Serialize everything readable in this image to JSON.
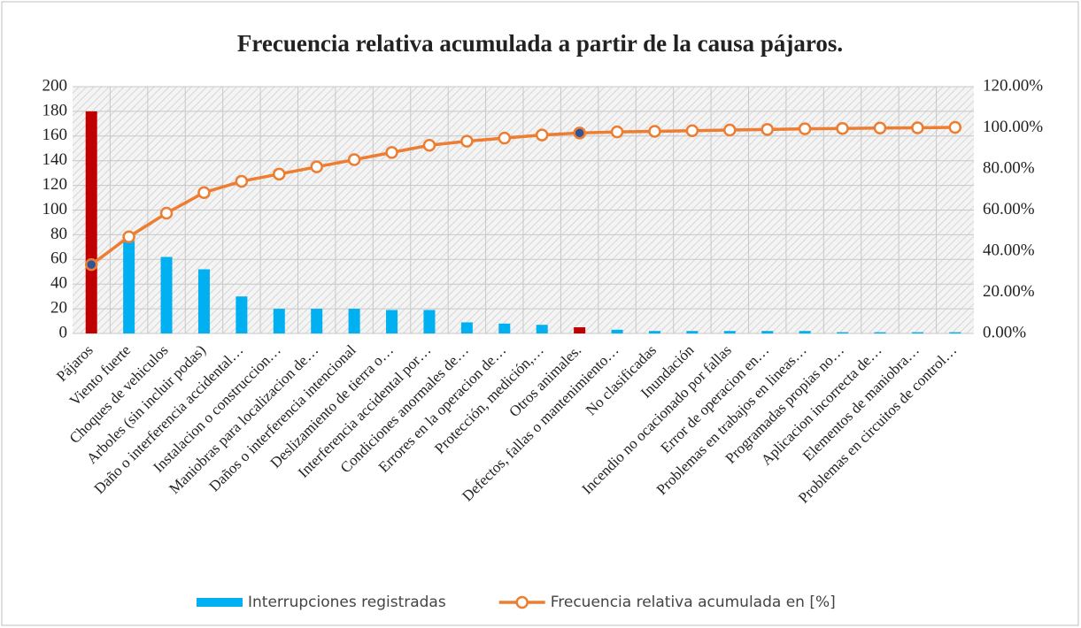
{
  "chart_data": {
    "type": "bar_line",
    "title": "Frecuencia relativa acumulada a partir de la causa pájaros.",
    "categories": [
      "Pájaros",
      "Viento fuerte",
      "Choques de vehiculos",
      "Arboles (sin incluir podas)",
      "Daño o interferencia accidental…",
      "Instalacion o construccion…",
      "Maniobras para localizacion de…",
      "Daños o interferencia intencional",
      "Deslizamiento de tierra o…",
      "Interferencia accidental por…",
      "Condiciones anormales de…",
      "Errores en la operacion de…",
      "Protección, medición,…",
      "Otros animales.",
      "Defectos, fallas o mantenimiento…",
      "No clasificadas",
      "Inundación",
      "Incendio no ocacionado por fallas",
      "Error de operacion en…",
      "Problemas en trabajos en lineas…",
      "Programadas propias no…",
      "Aplicacion incorrecta de…",
      "Elementos de maniobra…",
      "Problemas en circuitos de control…"
    ],
    "series": [
      {
        "name": "Interrupciones registradas",
        "type": "bar",
        "color": "#00b0f0",
        "colors": [
          "#c00000",
          "#00b0f0",
          "#00b0f0",
          "#00b0f0",
          "#00b0f0",
          "#00b0f0",
          "#00b0f0",
          "#00b0f0",
          "#00b0f0",
          "#00b0f0",
          "#00b0f0",
          "#00b0f0",
          "#00b0f0",
          "#c00000",
          "#00b0f0",
          "#00b0f0",
          "#00b0f0",
          "#00b0f0",
          "#00b0f0",
          "#00b0f0",
          "#00b0f0",
          "#00b0f0",
          "#00b0f0",
          "#00b0f0"
        ],
        "values": [
          180,
          75,
          62,
          52,
          30,
          20,
          20,
          20,
          19,
          19,
          9,
          8,
          7,
          5,
          3,
          2,
          2,
          2,
          2,
          2,
          1,
          1,
          1,
          1
        ]
      },
      {
        "name": "Frecuencia relativa acumulada en [%]",
        "type": "line",
        "axis": "y2",
        "color": "#ed7d31",
        "marker_colors": [
          "#2e5597",
          "#ffffff",
          "#ffffff",
          "#ffffff",
          "#ffffff",
          "#ffffff",
          "#ffffff",
          "#ffffff",
          "#ffffff",
          "#ffffff",
          "#ffffff",
          "#ffffff",
          "#ffffff",
          "#2e5597",
          "#ffffff",
          "#ffffff",
          "#ffffff",
          "#ffffff",
          "#ffffff",
          "#ffffff",
          "#ffffff",
          "#ffffff",
          "#ffffff",
          "#ffffff"
        ],
        "values": [
          33.5,
          47,
          58.5,
          68.5,
          74,
          77.5,
          81,
          84.5,
          88,
          91.5,
          93.5,
          95,
          96.5,
          97.5,
          98,
          98.3,
          98.6,
          98.9,
          99.2,
          99.5,
          99.7,
          99.9,
          100,
          100.2
        ]
      }
    ],
    "ylim": [
      0,
      200
    ],
    "yticks": [
      0,
      20,
      40,
      60,
      80,
      100,
      120,
      140,
      160,
      180,
      200
    ],
    "y2lim": [
      0,
      120
    ],
    "y2ticks": [
      {
        "value": 0,
        "label": "0.00%"
      },
      {
        "value": 20,
        "label": "20.00%"
      },
      {
        "value": 40,
        "label": "40.00%"
      },
      {
        "value": 60,
        "label": "60.00%"
      },
      {
        "value": 80,
        "label": "80.00%"
      },
      {
        "value": 100,
        "label": "100.00%"
      },
      {
        "value": 120,
        "label": "120.00%"
      }
    ],
    "grid": true,
    "legend": "bottom"
  }
}
